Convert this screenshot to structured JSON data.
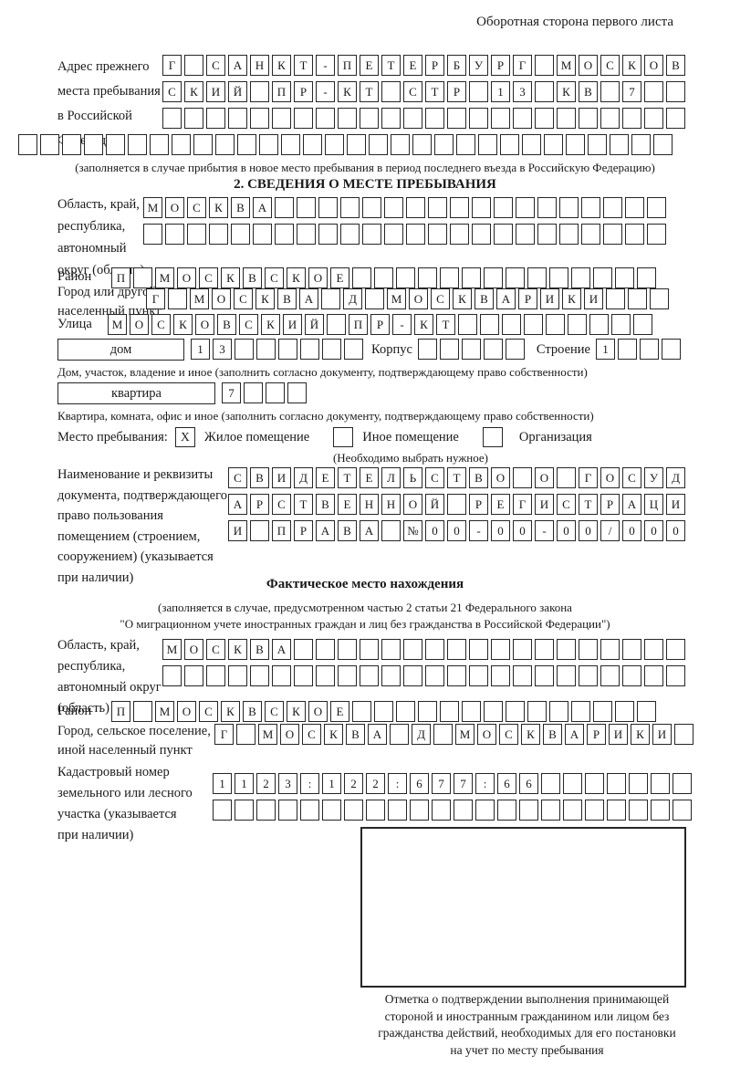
{
  "page": {
    "header_right": "Оборотная сторона первого листа"
  },
  "prev_address": {
    "label_lines": [
      "Адрес прежнего",
      "места пребывания",
      "в Российской",
      "Федерации"
    ],
    "row1": [
      "Г",
      "",
      "С",
      "А",
      "Н",
      "К",
      "Т",
      "-",
      "П",
      "Е",
      "Т",
      "Е",
      "Р",
      "Б",
      "У",
      "Р",
      "Г",
      "",
      "М",
      "О",
      "С",
      "К",
      "О",
      "В"
    ],
    "row2": [
      "С",
      "К",
      "И",
      "Й",
      "",
      "П",
      "Р",
      "-",
      "К",
      "Т",
      "",
      "С",
      "Т",
      "Р",
      "",
      "1",
      "3",
      "",
      "К",
      "В",
      "",
      "7",
      "",
      ""
    ],
    "row3": [
      "",
      "",
      "",
      "",
      "",
      "",
      "",
      "",
      "",
      "",
      "",
      "",
      "",
      "",
      "",
      "",
      "",
      "",
      "",
      "",
      "",
      "",
      "",
      ""
    ],
    "row4": [
      "",
      "",
      "",
      "",
      "",
      "",
      "",
      "",
      "",
      "",
      "",
      "",
      "",
      "",
      "",
      "",
      "",
      "",
      "",
      "",
      "",
      "",
      "",
      "",
      "",
      "",
      "",
      "",
      "",
      ""
    ],
    "caption": "(заполняется в случае прибытия в новое место пребывания в период последнего въезда в Российскую Федерацию)"
  },
  "section2": {
    "title": "2. СВЕДЕНИЯ О МЕСТЕ ПРЕБЫВАНИЯ",
    "oblast": {
      "label_lines": [
        "Область, край,",
        "республика,",
        "автономный",
        "округ (область)"
      ],
      "row1": [
        "М",
        "О",
        "С",
        "К",
        "В",
        "А",
        "",
        "",
        "",
        "",
        "",
        "",
        "",
        "",
        "",
        "",
        "",
        "",
        "",
        "",
        "",
        "",
        "",
        ""
      ],
      "row2": [
        "",
        "",
        "",
        "",
        "",
        "",
        "",
        "",
        "",
        "",
        "",
        "",
        "",
        "",
        "",
        "",
        "",
        "",
        "",
        "",
        "",
        "",
        "",
        ""
      ]
    },
    "raion": {
      "label": "Район",
      "row": [
        "П",
        "",
        "М",
        "О",
        "С",
        "К",
        "В",
        "С",
        "К",
        "О",
        "Е",
        "",
        "",
        "",
        "",
        "",
        "",
        "",
        "",
        "",
        "",
        "",
        "",
        "",
        ""
      ]
    },
    "gorod": {
      "label_lines": [
        "Город или другой",
        "населенный пункт"
      ],
      "row": [
        "Г",
        "",
        "М",
        "О",
        "С",
        "К",
        "В",
        "А",
        "",
        "Д",
        "",
        "М",
        "О",
        "С",
        "К",
        "В",
        "А",
        "Р",
        "И",
        "К",
        "И",
        "",
        "",
        ""
      ]
    },
    "ulitsa": {
      "label": "Улица",
      "row": [
        "М",
        "О",
        "С",
        "К",
        "О",
        "В",
        "С",
        "К",
        "И",
        "Й",
        "",
        "П",
        "Р",
        "-",
        "К",
        "Т",
        "",
        "",
        "",
        "",
        "",
        "",
        "",
        "",
        ""
      ]
    },
    "dom": {
      "label": "дом",
      "cells": [
        "1",
        "3",
        "",
        "",
        "",
        "",
        "",
        ""
      ],
      "korpus_label": "Корпус",
      "korpus_cells": [
        "",
        "",
        "",
        "",
        ""
      ],
      "stroenie_label": "Строение",
      "stroenie_cells": [
        "1",
        "",
        "",
        ""
      ]
    },
    "dom_caption": "Дом, участок, владение и иное (заполнить согласно документу, подтверждающему право собственности)",
    "kvartira": {
      "label": "квартира",
      "cells": [
        "7",
        "",
        "",
        ""
      ]
    },
    "kvartira_caption": "Квартира, комната, офис и иное (заполнить согласно документу, подтверждающему право собственности)",
    "mesto": {
      "label": "Место пребывания:",
      "options": [
        {
          "mark": "X",
          "label": "Жилое помещение"
        },
        {
          "mark": "",
          "label": "Иное помещение"
        },
        {
          "mark": "",
          "label": "Организация"
        }
      ],
      "hint": "(Необходимо выбрать нужное)"
    },
    "document": {
      "label_lines": [
        "Наименование и реквизиты",
        "документа, подтверждающего",
        "право пользования",
        "помещением (строением,",
        "сооружением) (указывается",
        "при наличии)"
      ],
      "row1": [
        "С",
        "В",
        "И",
        "Д",
        "Е",
        "Т",
        "Е",
        "Л",
        "Ь",
        "С",
        "Т",
        "В",
        "О",
        "",
        "О",
        "",
        "Г",
        "О",
        "С",
        "У",
        "Д"
      ],
      "row2": [
        "А",
        "Р",
        "С",
        "Т",
        "В",
        "Е",
        "Н",
        "Н",
        "О",
        "Й",
        "",
        "Р",
        "Е",
        "Г",
        "И",
        "С",
        "Т",
        "Р",
        "А",
        "Ц",
        "И"
      ],
      "row3": [
        "И",
        "",
        "П",
        "Р",
        "А",
        "В",
        "А",
        "",
        "№",
        "0",
        "0",
        "-",
        "0",
        "0",
        "-",
        "0",
        "0",
        "/",
        "0",
        "0",
        "0"
      ]
    }
  },
  "factual": {
    "title": "Фактическое место нахождения",
    "caption_lines": [
      "(заполняется в случае, предусмотренном частью 2 статьи 21 Федерального закона",
      "\"О миграционном учете иностранных граждан и лиц без гражданства в Российской Федерации\")"
    ],
    "oblast": {
      "label_lines": [
        "Область, край,",
        "республика,",
        "автономный округ",
        "(область)"
      ],
      "row1": [
        "М",
        "О",
        "С",
        "К",
        "В",
        "А",
        "",
        "",
        "",
        "",
        "",
        "",
        "",
        "",
        "",
        "",
        "",
        "",
        "",
        "",
        "",
        "",
        "",
        ""
      ],
      "row2": [
        "",
        "",
        "",
        "",
        "",
        "",
        "",
        "",
        "",
        "",
        "",
        "",
        "",
        "",
        "",
        "",
        "",
        "",
        "",
        "",
        "",
        "",
        "",
        ""
      ]
    },
    "raion": {
      "label": "Район",
      "row": [
        "П",
        "",
        "М",
        "О",
        "С",
        "К",
        "В",
        "С",
        "К",
        "О",
        "Е",
        "",
        "",
        "",
        "",
        "",
        "",
        "",
        "",
        "",
        "",
        "",
        "",
        "",
        ""
      ]
    },
    "gorod": {
      "label_lines": [
        "Город, сельское поселение,",
        "иной населенный пункт"
      ],
      "row": [
        "Г",
        "",
        "М",
        "О",
        "С",
        "К",
        "В",
        "А",
        "",
        "Д",
        "",
        "М",
        "О",
        "С",
        "К",
        "В",
        "А",
        "Р",
        "И",
        "К",
        "И",
        ""
      ]
    },
    "kadastr": {
      "label_lines": [
        "Кадастровый номер",
        "земельного или лесного",
        "участка (указывается",
        "при наличии)"
      ],
      "row1": [
        "1",
        "1",
        "2",
        "3",
        ":",
        "1",
        "2",
        "2",
        ":",
        "6",
        "7",
        "7",
        ":",
        "6",
        "6",
        "",
        "",
        "",
        "",
        "",
        "",
        ""
      ],
      "row2": [
        "",
        "",
        "",
        "",
        "",
        "",
        "",
        "",
        "",
        "",
        "",
        "",
        "",
        "",
        "",
        "",
        "",
        "",
        "",
        "",
        "",
        ""
      ]
    },
    "stamp_caption_lines": [
      "Отметка о подтверждении выполнения принимающей",
      "стороной и иностранным гражданином или лицом без",
      "гражданства действий, необходимых для его постановки",
      "на учет по месту пребывания"
    ]
  }
}
